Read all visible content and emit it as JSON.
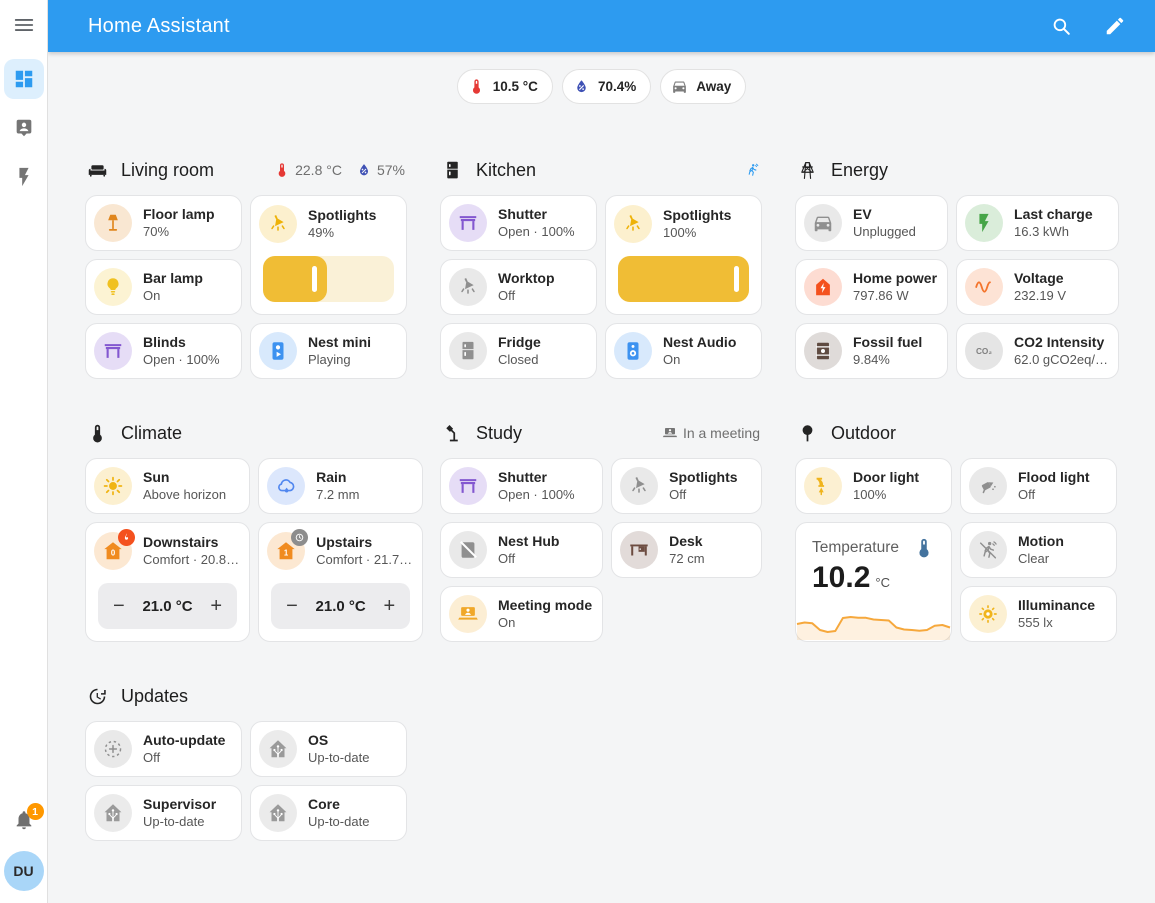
{
  "app": {
    "title": "Home Assistant",
    "actions": [
      {
        "icon": "magnify",
        "name": "search-button"
      },
      {
        "icon": "pencil",
        "name": "edit-dashboard-button"
      }
    ]
  },
  "colors": {
    "appbar": "#2d9bf0",
    "slider_fill": "#f0bd35",
    "slider_track": "#faf1d7",
    "badge": "#ff9800",
    "sparkline": "#f6a83c"
  },
  "sidebar": {
    "items": [
      {
        "icon": "dashboard",
        "name": "nav-overview",
        "selected": true
      },
      {
        "icon": "person-badge",
        "name": "nav-person",
        "selected": false
      },
      {
        "icon": "flash",
        "name": "nav-energy",
        "selected": false
      }
    ],
    "notification_count": "1",
    "user_initials": "DU"
  },
  "chips": [
    {
      "icon": "thermometer",
      "color": "#e53935",
      "label": "10.5 °C",
      "name": "chip-temperature"
    },
    {
      "icon": "humidity",
      "color": "#3f51b5",
      "label": "70.4%",
      "name": "chip-humidity"
    },
    {
      "icon": "car",
      "color": "#7d7d7d",
      "label": "Away",
      "name": "chip-presence"
    }
  ],
  "sections": [
    {
      "id": "living-room",
      "title": "Living room",
      "icon": "sofa",
      "badges": [
        {
          "icon": "thermometer",
          "color": "#e53935",
          "label": "22.8 °C"
        },
        {
          "icon": "humidity",
          "color": "#3f51b5",
          "label": "57%"
        }
      ],
      "cards": [
        {
          "name": "Floor lamp",
          "status": "70%",
          "icon": "floor-lamp",
          "color": "#e0861d"
        },
        {
          "name": "Spotlights",
          "status": "49%",
          "icon": "ceiling-light",
          "color": "#eeb208",
          "type": "slider",
          "slider_percent": 49
        },
        {
          "name": "Bar lamp",
          "status": "On",
          "icon": "bulb",
          "color": "#f0c121"
        },
        {
          "name": "Blinds",
          "status": "Open · 100%",
          "icon": "shutter",
          "color": "#8357d0"
        },
        {
          "name": "Nest mini",
          "status": "Playing",
          "icon": "speaker-cast",
          "color": "#3d92f0"
        }
      ]
    },
    {
      "id": "kitchen",
      "title": "Kitchen",
      "icon": "fridge",
      "badges": [
        {
          "icon": "motion-run",
          "color": "#2d9bf0",
          "label": ""
        }
      ],
      "cards": [
        {
          "name": "Shutter",
          "status": "Open · 100%",
          "icon": "shutter",
          "color": "#8357d0"
        },
        {
          "name": "Spotlights",
          "status": "100%",
          "icon": "ceiling-light",
          "color": "#eeb208",
          "type": "slider",
          "slider_percent": 100
        },
        {
          "name": "Worktop",
          "status": "Off",
          "icon": "ceiling-light",
          "color": "#8f8f8f"
        },
        {
          "name": "Fridge",
          "status": "Closed",
          "icon": "fridge",
          "color": "#8f8f8f"
        },
        {
          "name": "Nest Audio",
          "status": "On",
          "icon": "speaker",
          "color": "#3d92f0"
        }
      ]
    },
    {
      "id": "energy",
      "title": "Energy",
      "icon": "tower",
      "badges": [],
      "cards": [
        {
          "name": "EV",
          "status": "Unplugged",
          "icon": "car",
          "color": "#8f8f8f"
        },
        {
          "name": "Last charge",
          "status": "16.3 kWh",
          "icon": "flash",
          "color": "#46a548"
        },
        {
          "name": "Home power",
          "status": "797.86 W",
          "icon": "power-home",
          "color": "#f4511e"
        },
        {
          "name": "Voltage",
          "status": "232.19 V",
          "icon": "sine-wave",
          "color": "#f4742c"
        },
        {
          "name": "Fossil fuel",
          "status": "9.84%",
          "icon": "barrel",
          "color": "#5f4b41"
        },
        {
          "name": "CO2 Intensity",
          "status": "62.0 gCO2eq/…",
          "icon": "co2",
          "color": "#7f7f7f"
        }
      ]
    },
    {
      "id": "climate",
      "title": "Climate",
      "icon": "thermometer",
      "badges": [],
      "cards": [
        {
          "name": "Sun",
          "status": "Above horizon",
          "icon": "sun",
          "color": "#f0b412"
        },
        {
          "name": "Rain",
          "status": "7.2 mm",
          "icon": "rain",
          "color": "#5187ef"
        },
        {
          "name": "Downstairs",
          "status": "Comfort · 20.8…",
          "icon": "house-0",
          "color": "#f08b1f",
          "type": "thermostat",
          "target": "21.0 °C",
          "badge_icon": "flame",
          "badge_color": "#f4511e"
        },
        {
          "name": "Upstairs",
          "status": "Comfort · 21.7…",
          "icon": "house-1",
          "color": "#f08b1f",
          "type": "thermostat",
          "target": "21.0 °C",
          "badge_icon": "clock",
          "badge_color": "#8d8d8d"
        }
      ]
    },
    {
      "id": "study",
      "title": "Study",
      "icon": "desk-lamp",
      "badges": [
        {
          "icon": "laptop-account",
          "color": "#757575",
          "label": "In a meeting"
        }
      ],
      "cards": [
        {
          "name": "Shutter",
          "status": "Open · 100%",
          "icon": "shutter",
          "color": "#8357d0"
        },
        {
          "name": "Spotlights",
          "status": "Off",
          "icon": "ceiling-light",
          "color": "#8f8f8f"
        },
        {
          "name": "Nest Hub",
          "status": "Off",
          "icon": "tablet-off",
          "color": "#8f8f8f"
        },
        {
          "name": "Desk",
          "status": "72 cm",
          "icon": "desk",
          "color": "#6d4c41"
        },
        {
          "name": "Meeting mode",
          "status": "On",
          "icon": "laptop-account",
          "color": "#f0a82a"
        }
      ]
    },
    {
      "id": "outdoor",
      "title": "Outdoor",
      "icon": "tree",
      "badges": [],
      "cards": [
        {
          "name": "Door light",
          "status": "100%",
          "icon": "coach-lamp",
          "color": "#f0b41c"
        },
        {
          "name": "Flood light",
          "status": "Off",
          "icon": "floodlight",
          "color": "#8f8f8f"
        },
        {
          "name": "Temperature",
          "type": "graph",
          "icon": "thermometer",
          "color": "#44739e",
          "value": "10.2",
          "unit": "°C",
          "sparkline": [
            0.52,
            0.58,
            0.55,
            0.28,
            0.2,
            0.24,
            0.76,
            0.8,
            0.77,
            0.77,
            0.7,
            0.68,
            0.66,
            0.38,
            0.3,
            0.28,
            0.25,
            0.28,
            0.45,
            0.48,
            0.38
          ]
        },
        {
          "name": "Motion",
          "status": "Clear",
          "icon": "motion-off",
          "color": "#8f8f8f"
        },
        {
          "name": "Illuminance",
          "status": "555 lx",
          "icon": "brightness",
          "color": "#f0b41c"
        }
      ]
    },
    {
      "id": "updates",
      "title": "Updates",
      "icon": "update",
      "badges": [],
      "cards": [
        {
          "name": "Auto-update",
          "status": "Off",
          "icon": "update-auto",
          "color": "#8f8f8f"
        },
        {
          "name": "OS",
          "status": "Up-to-date",
          "icon": "ha-logo",
          "color": "#9a9a9a"
        },
        {
          "name": "Supervisor",
          "status": "Up-to-date",
          "icon": "ha-logo",
          "color": "#9a9a9a"
        },
        {
          "name": "Core",
          "status": "Up-to-date",
          "icon": "ha-logo",
          "color": "#9a9a9a"
        }
      ]
    }
  ]
}
